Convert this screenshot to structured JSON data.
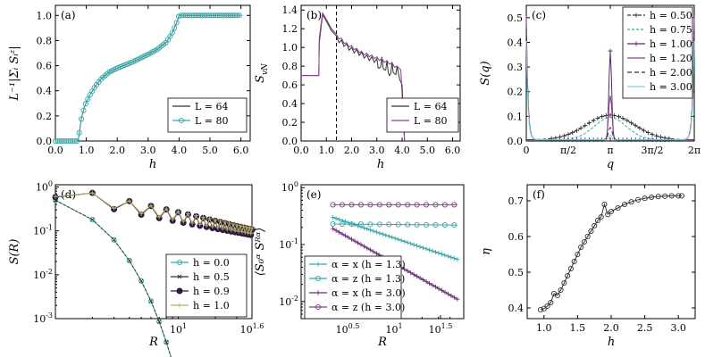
{
  "chart_data": [
    {
      "panel": "(a)",
      "type": "line",
      "xlabel": "h",
      "ylabel": "L^{-1}|Σ_i S_i^z|",
      "xlim": [
        0,
        6.3
      ],
      "ylim": [
        0,
        1.08
      ],
      "xticks": [
        0.0,
        1.0,
        2.0,
        3.0,
        4.0,
        5.0,
        6.0
      ],
      "yticks": [
        0.0,
        0.2,
        0.4,
        0.6,
        0.8,
        1.0
      ],
      "xtick_labels": [
        "0.0",
        "1.0",
        "2.0",
        "3.0",
        "4.0",
        "5.0",
        "6.0"
      ],
      "ytick_labels": [
        "0.0",
        "0.2",
        "0.4",
        "0.6",
        "0.8",
        "1.0"
      ],
      "legend": [
        "L = 64",
        "L = 80"
      ],
      "series": [
        {
          "name": "L = 64",
          "color": "#333333",
          "marker": "none",
          "x": [
            0,
            0.5,
            0.74,
            0.76,
            0.85,
            0.95,
            1.1,
            1.3,
            1.5,
            1.75,
            2.0,
            2.5,
            3.0,
            3.3,
            3.6,
            3.8,
            3.95,
            4.0,
            4.5,
            5.0,
            5.5,
            6.0
          ],
          "y": [
            0,
            0,
            0,
            0.05,
            0.19,
            0.28,
            0.36,
            0.44,
            0.5,
            0.55,
            0.58,
            0.63,
            0.69,
            0.73,
            0.79,
            0.87,
            0.96,
            1.0,
            1.0,
            1.0,
            1.0,
            1.0
          ]
        },
        {
          "name": "L = 80",
          "color": "#3aa6a6",
          "marker": "o",
          "x": [
            0,
            0.5,
            0.74,
            0.76,
            0.85,
            0.95,
            1.1,
            1.3,
            1.5,
            1.75,
            2.0,
            2.5,
            3.0,
            3.3,
            3.6,
            3.8,
            3.95,
            4.0,
            4.5,
            5.0,
            5.5,
            6.0
          ],
          "y": [
            0,
            0,
            0,
            0.05,
            0.19,
            0.28,
            0.36,
            0.44,
            0.5,
            0.55,
            0.58,
            0.63,
            0.69,
            0.73,
            0.79,
            0.87,
            0.96,
            1.0,
            1.0,
            1.0,
            1.0,
            1.0
          ]
        }
      ]
    },
    {
      "panel": "(b)",
      "type": "line",
      "xlabel": "h",
      "ylabel": "S_vN",
      "xlim": [
        0,
        6.3
      ],
      "ylim": [
        0,
        1.45
      ],
      "xticks": [
        0.0,
        1.0,
        2.0,
        3.0,
        4.0,
        5.0,
        6.0
      ],
      "yticks": [
        0.0,
        0.2,
        0.4,
        0.6,
        0.8,
        1.0,
        1.2,
        1.4
      ],
      "xtick_labels": [
        "0.0",
        "1.0",
        "2.0",
        "3.0",
        "4.0",
        "5.0",
        "6.0"
      ],
      "ytick_labels": [
        "0.0",
        "0.2",
        "0.4",
        "0.6",
        "0.8",
        "1.0",
        "1.2",
        "1.4"
      ],
      "vline_x": 1.4,
      "legend": [
        "L = 64",
        "L = 80"
      ],
      "series": [
        {
          "name": "L = 64",
          "color": "#333333",
          "x": [
            0,
            0.7,
            0.72,
            0.85,
            1.0,
            1.2,
            1.4,
            1.6,
            1.8,
            2.0,
            2.2,
            2.4,
            2.6,
            2.8,
            3.0,
            3.1,
            3.2,
            3.3,
            3.4,
            3.5,
            3.6,
            3.7,
            3.8,
            3.9,
            4.0,
            4.05,
            4.1
          ],
          "y": [
            0.7,
            0.7,
            1.05,
            1.35,
            1.28,
            1.18,
            1.12,
            1.08,
            1.04,
            1.0,
            0.98,
            0.95,
            0.92,
            0.9,
            0.88,
            0.78,
            0.9,
            0.76,
            0.86,
            0.7,
            0.84,
            0.72,
            0.8,
            0.66,
            0.6,
            0.3,
            0.0
          ]
        },
        {
          "name": "L = 80",
          "color": "#8a3d8a",
          "x": [
            0,
            0.7,
            0.72,
            0.85,
            1.0,
            1.2,
            1.4,
            1.6,
            1.8,
            2.0,
            2.2,
            2.4,
            2.6,
            2.8,
            3.0,
            3.2,
            3.4,
            3.6,
            3.8,
            3.95,
            4.0,
            4.05,
            4.1
          ],
          "y": [
            0.7,
            0.7,
            1.1,
            1.37,
            1.3,
            1.2,
            1.14,
            1.1,
            1.05,
            1.02,
            0.99,
            0.96,
            0.94,
            0.92,
            0.9,
            0.88,
            0.86,
            0.84,
            0.8,
            0.76,
            0.5,
            0.2,
            0.0
          ]
        }
      ]
    },
    {
      "panel": "(c)",
      "type": "line",
      "xlabel": "q",
      "ylabel": "S(q)",
      "xlim": [
        0,
        6.2832
      ],
      "ylim": [
        0,
        0.55
      ],
      "xticks": [
        0,
        1.5708,
        3.1416,
        4.7124,
        6.2832
      ],
      "yticks": [
        0.0,
        0.1,
        0.2,
        0.3,
        0.4,
        0.5
      ],
      "xtick_labels": [
        "0",
        "π/2",
        "π",
        "3π/2",
        "2π"
      ],
      "ytick_labels": [
        "0.0",
        "0.1",
        "0.2",
        "0.3",
        "0.4",
        "0.5"
      ],
      "legend": [
        "h = 0.50",
        "h = 0.75",
        "h = 1.00",
        "h = 1.20",
        "h = 2.00",
        "h = 3.00"
      ],
      "series": [
        {
          "name": "h = 0.50",
          "color": "#333333",
          "peak": 0.1,
          "width": 0.9,
          "edge": 0.0
        },
        {
          "name": "h = 0.75",
          "color": "#3aa6a6",
          "peak": 0.09,
          "width": 0.6,
          "edge": 0.0
        },
        {
          "name": "h = 1.00",
          "color": "#5a2a6a",
          "peak": 0.36,
          "width": 0.05,
          "edge": 0.0
        },
        {
          "name": "h = 1.20",
          "color": "#8a3d8a",
          "peak": 0.18,
          "width": 0.06,
          "edge": 0.5
        },
        {
          "name": "h = 2.00",
          "color": "#333333",
          "peak": 0.05,
          "width": 0.07,
          "edge": 0.45
        },
        {
          "name": "h = 3.00",
          "color": "#7fd0d0",
          "peak": 0.02,
          "width": 0.05,
          "edge": 0.4
        }
      ]
    },
    {
      "panel": "(d)",
      "type": "line",
      "scale": "log-log",
      "xlabel": "R",
      "ylabel": "S(R)",
      "xlim_log10": [
        0,
        1.6
      ],
      "ylim_log10": [
        -3,
        0.05
      ],
      "xticks_log10": [
        1,
        1.6
      ],
      "yticks_log10": [
        -3,
        -2,
        -1,
        0
      ],
      "xtick_labels": [
        "10^1",
        "10^1.6"
      ],
      "ytick_labels": [
        "10^-3",
        "10^-2",
        "10^-1",
        "10^0"
      ],
      "legend": [
        "h = 0.0",
        "h = 0.5",
        "h = 0.9",
        "h = 1.0"
      ],
      "series": [
        {
          "name": "h = 0.0",
          "color": "#3aa6a6",
          "marker": "o",
          "type": "exp",
          "R": [
            1,
            2,
            3,
            4,
            5,
            6,
            7,
            8,
            9
          ],
          "y": [
            0.5,
            0.18,
            0.062,
            0.021,
            0.0072,
            0.0025,
            0.00085,
            0.00029,
            0.0001
          ]
        },
        {
          "name": "h = 0.5",
          "color": "#333333",
          "marker": "x",
          "type": "exp",
          "R": [
            1,
            2,
            3,
            4,
            5,
            6,
            7,
            8,
            9
          ],
          "y": [
            0.5,
            0.18,
            0.062,
            0.021,
            0.0072,
            0.0025,
            0.00085,
            0.00029,
            0.0001
          ]
        },
        {
          "name": "h = 0.9",
          "color": "#2a1840",
          "marker": "filled",
          "type": "power",
          "amp": 0.85,
          "exponent": 0.6,
          "osc": 0.32
        },
        {
          "name": "h = 1.0",
          "color": "#b8b060",
          "marker": "+",
          "type": "power",
          "amp": 0.85,
          "exponent": 0.58,
          "osc": 0.3
        }
      ]
    },
    {
      "panel": "(e)",
      "type": "line",
      "scale": "log-log",
      "xlabel": "R",
      "ylabel": "⟨S_0^α S_R^α⟩",
      "xlim_log10": [
        0,
        1.75
      ],
      "ylim_log10": [
        -2.3,
        0.05
      ],
      "xticks_log10": [
        0.5,
        1,
        1.5
      ],
      "yticks_log10": [
        -2,
        -1,
        0
      ],
      "xtick_labels": [
        "10^0.5",
        "10^1",
        "10^1.5"
      ],
      "ytick_labels": [
        "10^-2",
        "10^-1",
        "10^0"
      ],
      "legend": [
        "α = x (h = 1.3)",
        "α = z (h = 1.3)",
        "α = x (h = 3.0)",
        "α = z (h = 3.0)"
      ],
      "series": [
        {
          "name": "α = x (h = 1.3)",
          "color": "#3aa6a6",
          "marker": "+",
          "y_start": 0.3,
          "y_end": 0.055
        },
        {
          "name": "α = z (h = 1.3)",
          "color": "#3aa6a6",
          "marker": "o",
          "y_start": 0.23,
          "y_end": 0.22
        },
        {
          "name": "α = x (h = 3.0)",
          "color": "#6a2a7a",
          "marker": "+",
          "y_start": 0.19,
          "y_end": 0.011
        },
        {
          "name": "α = z (h = 3.0)",
          "color": "#8a3d8a",
          "marker": "o",
          "y_start": 0.5,
          "y_end": 0.5
        }
      ]
    },
    {
      "panel": "(f)",
      "type": "line",
      "xlabel": "h",
      "ylabel": "η",
      "xlim": [
        0.75,
        3.25
      ],
      "ylim": [
        0.37,
        0.745
      ],
      "xticks": [
        1.0,
        1.5,
        2.0,
        2.5,
        3.0
      ],
      "yticks": [
        0.4,
        0.5,
        0.6,
        0.7
      ],
      "xtick_labels": [
        "1.0",
        "1.5",
        "2.0",
        "2.5",
        "3.0"
      ],
      "ytick_labels": [
        "0.4",
        "0.5",
        "0.6",
        "0.7"
      ],
      "series": [
        {
          "name": "η",
          "color": "#333333",
          "marker": "o",
          "x": [
            0.95,
            1.0,
            1.05,
            1.1,
            1.15,
            1.2,
            1.25,
            1.3,
            1.35,
            1.4,
            1.45,
            1.5,
            1.55,
            1.6,
            1.65,
            1.7,
            1.75,
            1.8,
            1.85,
            1.9,
            1.95,
            2.0,
            2.1,
            2.2,
            2.3,
            2.4,
            2.5,
            2.6,
            2.7,
            2.8,
            2.9,
            3.0,
            3.05
          ],
          "y": [
            0.395,
            0.398,
            0.405,
            0.415,
            0.44,
            0.435,
            0.45,
            0.47,
            0.49,
            0.51,
            0.53,
            0.55,
            0.57,
            0.585,
            0.6,
            0.615,
            0.63,
            0.645,
            0.655,
            0.69,
            0.662,
            0.67,
            0.68,
            0.69,
            0.697,
            0.703,
            0.707,
            0.71,
            0.712,
            0.713,
            0.714,
            0.714,
            0.714
          ]
        }
      ]
    }
  ]
}
